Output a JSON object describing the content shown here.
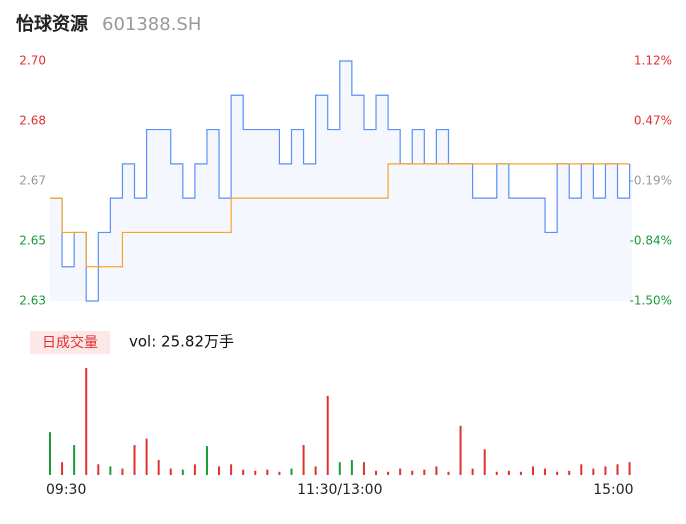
{
  "chart_data": [
    {
      "type": "line",
      "title": "怡球资源",
      "subtitle": "601388.SH",
      "x": [
        0,
        5,
        10,
        15,
        20,
        25,
        30,
        35,
        40,
        45,
        50,
        55,
        60,
        65,
        70,
        75,
        80,
        85,
        90,
        95,
        100,
        105,
        110,
        115,
        120,
        125,
        130,
        135,
        140,
        145,
        150,
        155,
        160,
        165,
        170,
        175,
        180,
        185,
        190,
        195,
        200,
        205,
        210,
        215,
        220,
        225,
        230,
        235,
        240
      ],
      "xlim": [
        0,
        241
      ],
      "series": [
        {
          "name": "price",
          "color": "#5b8ff9",
          "values": [
            2.66,
            2.64,
            2.65,
            2.63,
            2.65,
            2.66,
            2.67,
            2.66,
            2.68,
            2.68,
            2.67,
            2.66,
            2.67,
            2.68,
            2.66,
            2.69,
            2.68,
            2.68,
            2.68,
            2.67,
            2.68,
            2.67,
            2.69,
            2.68,
            2.7,
            2.69,
            2.68,
            2.69,
            2.68,
            2.67,
            2.68,
            2.67,
            2.68,
            2.67,
            2.67,
            2.66,
            2.66,
            2.67,
            2.66,
            2.66,
            2.66,
            2.65,
            2.67,
            2.66,
            2.67,
            2.66,
            2.67,
            2.66,
            2.67
          ]
        },
        {
          "name": "average",
          "color": "#f5a623",
          "values": [
            2.66,
            2.65,
            2.65,
            2.64,
            2.64,
            2.64,
            2.65,
            2.65,
            2.65,
            2.65,
            2.65,
            2.65,
            2.65,
            2.65,
            2.65,
            2.66,
            2.66,
            2.66,
            2.66,
            2.66,
            2.66,
            2.66,
            2.66,
            2.66,
            2.66,
            2.66,
            2.66,
            2.66,
            2.67,
            2.67,
            2.67,
            2.67,
            2.67,
            2.67,
            2.67,
            2.67,
            2.67,
            2.67,
            2.67,
            2.67,
            2.67,
            2.67,
            2.67,
            2.67,
            2.67,
            2.67,
            2.67,
            2.67,
            2.67
          ]
        }
      ],
      "ylim": [
        2.63,
        2.7
      ],
      "yticks": [
        {
          "value": 2.63,
          "label": "2.63"
        },
        {
          "value": 2.6475,
          "label": "2.65"
        },
        {
          "value": 2.665,
          "label": "2.67"
        },
        {
          "value": 2.6825,
          "label": "2.68"
        },
        {
          "value": 2.7,
          "label": "2.70"
        }
      ],
      "ytick_colors": [
        "#1a9a3a",
        "#1a9a3a",
        "#999999",
        "#e0312f",
        "#e0312f"
      ],
      "y2lim": [
        -1.5,
        1.12
      ],
      "y2ticks": [
        {
          "value": -1.5,
          "label": "-1.50%"
        },
        {
          "value": -0.845,
          "label": "-0.84%"
        },
        {
          "value": -0.19,
          "label": "-0.19%"
        },
        {
          "value": 0.465,
          "label": "0.47%"
        },
        {
          "value": 1.12,
          "label": "1.12%"
        }
      ],
      "area_fill": "#f4f7fd",
      "step": true
    },
    {
      "type": "bar",
      "legend": "日成交量",
      "subtitle": "vol: 25.82万手",
      "x": [
        0,
        5,
        10,
        15,
        20,
        25,
        30,
        35,
        40,
        45,
        50,
        55,
        60,
        65,
        70,
        75,
        80,
        85,
        90,
        95,
        100,
        105,
        110,
        115,
        120,
        125,
        130,
        135,
        140,
        145,
        150,
        155,
        160,
        165,
        170,
        175,
        180,
        185,
        190,
        195,
        200,
        205,
        210,
        215,
        220,
        225,
        230,
        235,
        240
      ],
      "xlim": [
        0,
        241
      ],
      "values": [
        40,
        12,
        28,
        100,
        10,
        8,
        6,
        28,
        34,
        14,
        6,
        5,
        10,
        27,
        8,
        10,
        5,
        4,
        5,
        3,
        6,
        28,
        8,
        74,
        12,
        14,
        12,
        4,
        3,
        6,
        4,
        5,
        8,
        3,
        46,
        6,
        24,
        3,
        4,
        3,
        8,
        6,
        3,
        4,
        10,
        6,
        8,
        10,
        12
      ],
      "colors": [
        "#1a9a3a",
        "#e0312f",
        "#1a9a3a",
        "#e0312f",
        "#e0312f",
        "#1a9a3a",
        "#e0312f",
        "#e0312f",
        "#e0312f",
        "#e0312f",
        "#e0312f",
        "#1a9a3a",
        "#e0312f",
        "#1a9a3a",
        "#e0312f",
        "#e0312f",
        "#e0312f",
        "#e0312f",
        "#e0312f",
        "#e0312f",
        "#1a9a3a",
        "#e0312f",
        "#e0312f",
        "#e0312f",
        "#1a9a3a",
        "#1a9a3a",
        "#e0312f",
        "#e0312f",
        "#e0312f",
        "#e0312f",
        "#e0312f",
        "#e0312f",
        "#e0312f",
        "#e0312f",
        "#e0312f",
        "#e0312f",
        "#e0312f",
        "#e0312f",
        "#e0312f",
        "#e0312f",
        "#e0312f",
        "#e0312f",
        "#e0312f",
        "#e0312f",
        "#e0312f",
        "#e0312f",
        "#e0312f",
        "#e0312f",
        "#e0312f"
      ],
      "ylim": [
        0,
        100
      ],
      "xticks": [
        {
          "value": 0,
          "label": "09:30"
        },
        {
          "value": 120,
          "label": "11:30/13:00"
        },
        {
          "value": 240,
          "label": "15:00"
        }
      ]
    }
  ]
}
